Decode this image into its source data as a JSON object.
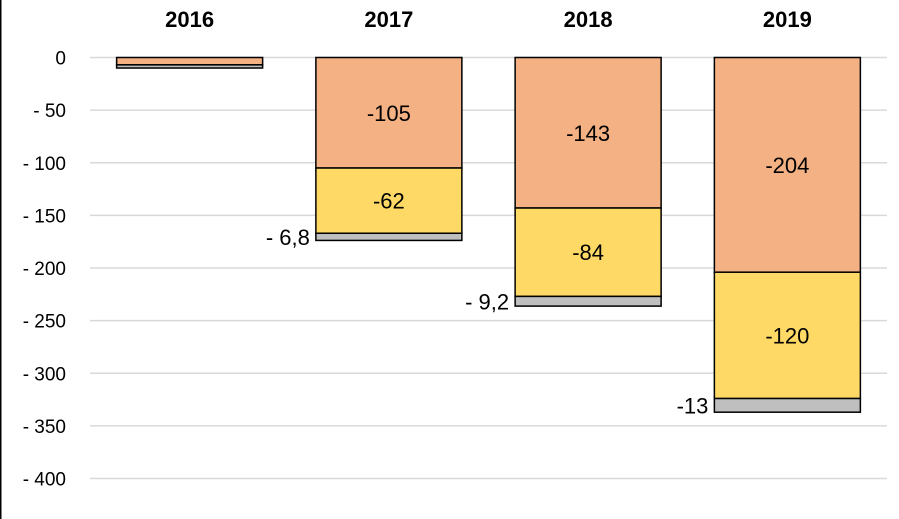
{
  "chart_data": {
    "type": "bar",
    "stacked": true,
    "categories": [
      "2016",
      "2017",
      "2018",
      "2019"
    ],
    "category_axis_position": "top",
    "series": [
      {
        "values": [
          -7,
          -105,
          -143,
          -204
        ],
        "color": "#f4b183"
      },
      {
        "values": [
          0,
          -62,
          -84,
          -120
        ],
        "color": "#ffd966"
      },
      {
        "values": [
          -3,
          -6.8,
          -9.2,
          -13
        ],
        "color": "#bfbfbf"
      }
    ],
    "data_labels": [
      [
        "",
        "-105",
        "-143",
        "-204"
      ],
      [
        "",
        "-62",
        "-84",
        "-120"
      ],
      [
        "",
        "- 6,8",
        "- 9,2",
        "-13"
      ]
    ],
    "y_ticks": [
      0,
      -50,
      -100,
      -150,
      -200,
      -250,
      -300,
      -350,
      -400
    ],
    "y_tick_labels": [
      "0",
      "- 50",
      "- 100",
      "- 150",
      "- 200",
      "- 250",
      "- 300",
      "- 350",
      "- 400"
    ],
    "ylim": [
      -400,
      0
    ],
    "grid": true,
    "legend": "none",
    "title": "",
    "xlabel": "",
    "ylabel": ""
  }
}
